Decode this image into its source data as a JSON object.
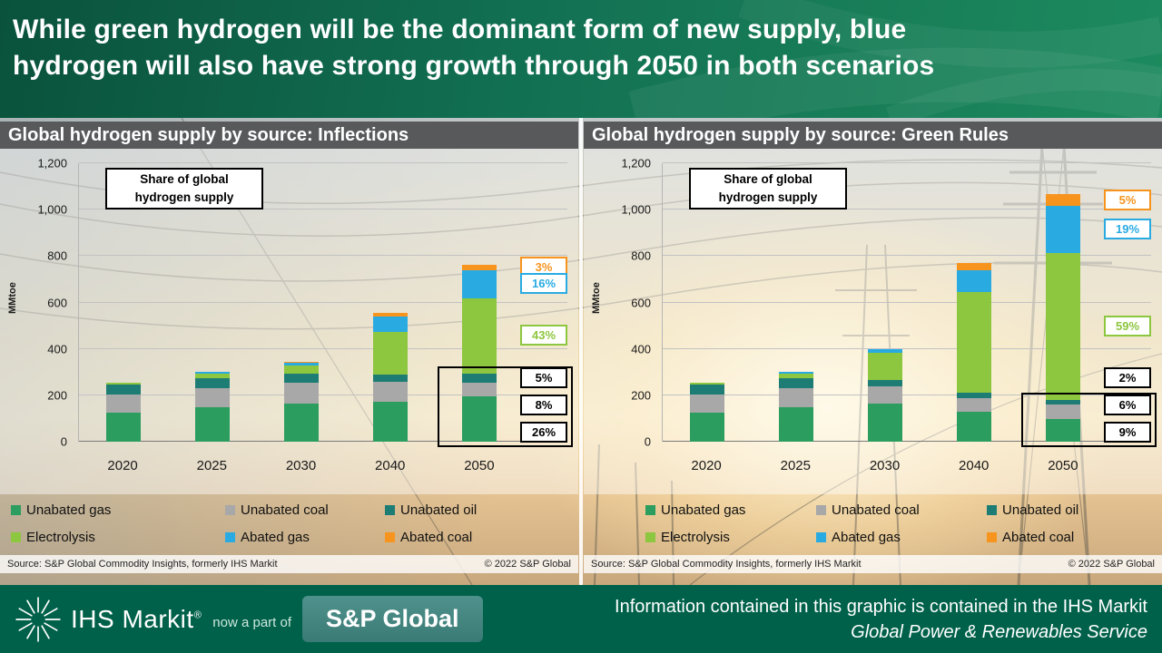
{
  "header": {
    "title_line1": "While green hydrogen will be the dominant form of new supply, blue",
    "title_line2": "hydrogen will also have strong growth through 2050 in both scenarios"
  },
  "chart_data": [
    {
      "type": "bar",
      "stacked": true,
      "title": "Global hydrogen supply by source: Inflections",
      "ylabel": "MMtoe",
      "ylim": [
        0,
        1200
      ],
      "yticks": [
        "0",
        "200",
        "400",
        "600",
        "800",
        "1,000",
        "1,200"
      ],
      "annotation_line1": "Share of global",
      "annotation_line2": "hydrogen supply",
      "categories": [
        "2020",
        "2025",
        "2030",
        "2040",
        "2050"
      ],
      "series": [
        {
          "name": "Unabated gas",
          "color": "#2a9d5f",
          "values": [
            125,
            150,
            165,
            172,
            196
          ]
        },
        {
          "name": "Unabated coal",
          "color": "#a8a8a8",
          "values": [
            80,
            82,
            88,
            85,
            60
          ]
        },
        {
          "name": "Unabated oil",
          "color": "#1d7d74",
          "values": [
            40,
            40,
            40,
            32,
            38
          ]
        },
        {
          "name": "Electrolysis",
          "color": "#8dc63f",
          "values": [
            8,
            22,
            35,
            183,
            324
          ]
        },
        {
          "name": "Abated gas",
          "color": "#29abe2",
          "values": [
            0,
            6,
            12,
            68,
            121
          ]
        },
        {
          "name": "Abated coal",
          "color": "#f7941e",
          "values": [
            0,
            0,
            5,
            15,
            23
          ]
        }
      ],
      "share_callouts": [
        {
          "label": "3%",
          "color": "#f7941e"
        },
        {
          "label": "16%",
          "color": "#29abe2"
        },
        {
          "label": "43%",
          "color": "#8dc63f"
        },
        {
          "label": "5%",
          "color": "#000000"
        },
        {
          "label": "8%",
          "color": "#000000"
        },
        {
          "label": "26%",
          "color": "#000000"
        }
      ],
      "source": "Source: S&P Global Commodity Insights, formerly IHS Markit",
      "copyright": "© 2022 S&P Global"
    },
    {
      "type": "bar",
      "stacked": true,
      "title": "Global hydrogen supply by source: Green Rules",
      "ylabel": "MMtoe",
      "ylim": [
        0,
        1200
      ],
      "yticks": [
        "0",
        "200",
        "400",
        "600",
        "800",
        "1,000",
        "1,200"
      ],
      "annotation_line1": "Share of global",
      "annotation_line2": "hydrogen supply",
      "categories": [
        "2020",
        "2025",
        "2030",
        "2040",
        "2050"
      ],
      "series": [
        {
          "name": "Unabated gas",
          "color": "#2a9d5f",
          "values": [
            125,
            150,
            165,
            130,
            96
          ]
        },
        {
          "name": "Unabated coal",
          "color": "#a8a8a8",
          "values": [
            80,
            82,
            72,
            57,
            64
          ]
        },
        {
          "name": "Unabated oil",
          "color": "#1d7d74",
          "values": [
            40,
            40,
            30,
            25,
            21
          ]
        },
        {
          "name": "Electrolysis",
          "color": "#8dc63f",
          "values": [
            8,
            22,
            118,
            433,
            631
          ]
        },
        {
          "name": "Abated gas",
          "color": "#29abe2",
          "values": [
            0,
            6,
            15,
            95,
            203
          ]
        },
        {
          "name": "Abated coal",
          "color": "#f7941e",
          "values": [
            0,
            0,
            0,
            30,
            53
          ]
        }
      ],
      "share_callouts": [
        {
          "label": "5%",
          "color": "#f7941e"
        },
        {
          "label": "19%",
          "color": "#29abe2"
        },
        {
          "label": "59%",
          "color": "#8dc63f"
        },
        {
          "label": "2%",
          "color": "#000000"
        },
        {
          "label": "6%",
          "color": "#000000"
        },
        {
          "label": "9%",
          "color": "#000000"
        }
      ],
      "source": "Source: S&P Global Commodity Insights, formerly IHS Markit",
      "copyright": "© 2022 S&P Global"
    }
  ],
  "footer": {
    "brand": "IHS Markit",
    "registered_mark": "®",
    "now_part_of": "now a part of",
    "sp_global": "S&P Global",
    "info_line1": "Information contained in this graphic is contained in the IHS Markit",
    "info_line2": "Global Power & Renewables  Service"
  }
}
